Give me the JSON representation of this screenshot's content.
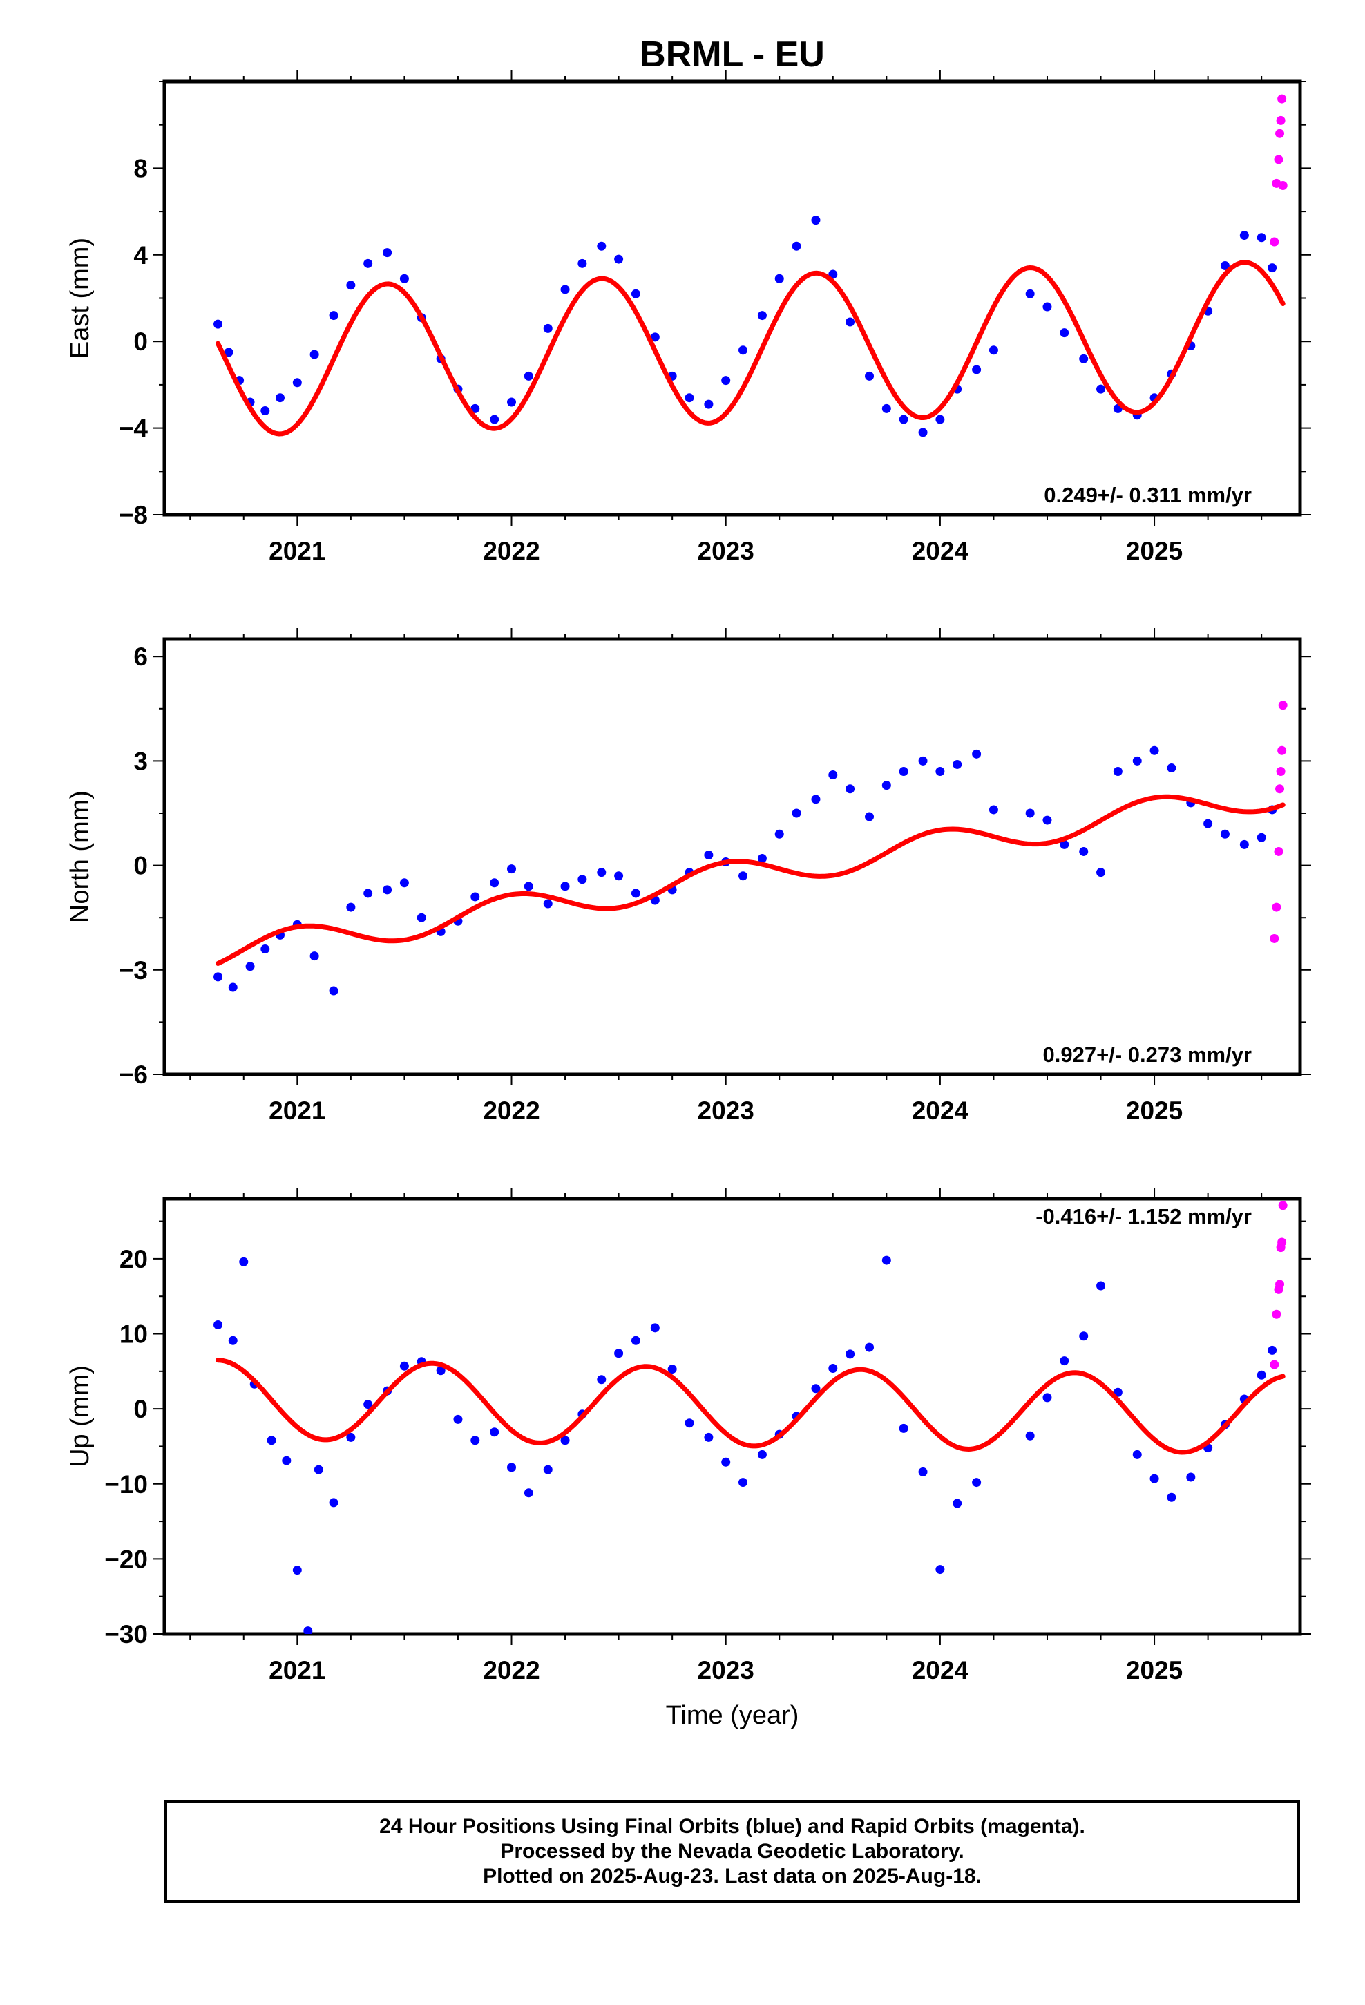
{
  "title": "BRML - EU",
  "colors": {
    "final": "#0000ff",
    "rapid": "#ff00ff",
    "model": "#ff0000",
    "frame": "#000000"
  },
  "footer": {
    "line1": "24 Hour Positions Using Final Orbits (blue) and Rapid Orbits (magenta).",
    "line2": "Processed by the Nevada Geodetic Laboratory.",
    "line3": "Plotted on 2025-Aug-23. Last data on 2025-Aug-18."
  },
  "chart_data": [
    {
      "type": "scatter",
      "ylabel": "East (mm)",
      "xlabel": "",
      "xlim": [
        2020.38,
        2025.68
      ],
      "ylim": [
        -8,
        12
      ],
      "xticks": [
        2021,
        2022,
        2023,
        2024,
        2025
      ],
      "yticks": [
        -8,
        -4,
        0,
        4,
        8
      ],
      "annotation": "0.249+/- 0.311 mm/yr",
      "annotation_pos": "bottom-right",
      "rate_mm_yr": 0.249,
      "rate_sigma": 0.311,
      "model": {
        "intercept": -0.35,
        "rate": 0.249,
        "amp": 3.4,
        "peak_phase": 0.42,
        "x0": 2023.0
      },
      "series": [
        {
          "name": "Final",
          "x": [
            2020.63,
            2020.68,
            2020.73,
            2020.78,
            2020.85,
            2020.92,
            2021.0,
            2021.08,
            2021.17,
            2021.25,
            2021.33,
            2021.42,
            2021.5,
            2021.58,
            2021.67,
            2021.75,
            2021.83,
            2021.92,
            2022.0,
            2022.08,
            2022.17,
            2022.25,
            2022.33,
            2022.42,
            2022.5,
            2022.58,
            2022.67,
            2022.75,
            2022.83,
            2022.92,
            2023.0,
            2023.08,
            2023.17,
            2023.25,
            2023.33,
            2023.42,
            2023.5,
            2023.58,
            2023.67,
            2023.75,
            2023.83,
            2023.92,
            2024.0,
            2024.08,
            2024.17,
            2024.25,
            2024.42,
            2024.5,
            2024.58,
            2024.67,
            2024.75,
            2024.83,
            2024.92,
            2025.0,
            2025.08,
            2025.17,
            2025.25,
            2025.33,
            2025.42,
            2025.5,
            2025.55
          ],
          "y": [
            0.8,
            -0.5,
            -1.8,
            -2.8,
            -3.2,
            -2.6,
            -1.9,
            -0.6,
            1.2,
            2.6,
            3.6,
            4.1,
            2.9,
            1.1,
            -0.8,
            -2.2,
            -3.1,
            -3.6,
            -2.8,
            -1.6,
            0.6,
            2.4,
            3.6,
            4.4,
            3.8,
            2.2,
            0.2,
            -1.6,
            -2.6,
            -2.9,
            -1.8,
            -0.4,
            1.2,
            2.9,
            4.4,
            5.6,
            3.1,
            0.9,
            -1.6,
            -3.1,
            -3.6,
            -4.2,
            -3.6,
            -2.2,
            -1.3,
            -0.4,
            2.2,
            1.6,
            0.4,
            -0.8,
            -2.2,
            -3.1,
            -3.4,
            -2.6,
            -1.5,
            -0.2,
            1.4,
            3.5,
            4.9,
            4.8,
            3.4
          ]
        },
        {
          "name": "Rapid",
          "x": [
            2025.56,
            2025.57,
            2025.58,
            2025.585,
            2025.59,
            2025.595,
            2025.6
          ],
          "y": [
            4.6,
            7.3,
            8.4,
            9.6,
            10.2,
            11.2,
            7.2
          ]
        }
      ]
    },
    {
      "type": "scatter",
      "ylabel": "North (mm)",
      "xlabel": "",
      "xlim": [
        2020.38,
        2025.68
      ],
      "ylim": [
        -6,
        6.5
      ],
      "xticks": [
        2021,
        2022,
        2023,
        2024,
        2025
      ],
      "yticks": [
        -6,
        -3,
        0,
        3,
        6
      ],
      "annotation": "0.927+/- 0.273 mm/yr",
      "annotation_pos": "bottom-right",
      "rate_mm_yr": 0.927,
      "rate_sigma": 0.273,
      "model": {
        "intercept": -0.33,
        "rate": 0.927,
        "amp": 0.42,
        "peak_phase": 0.0,
        "x0": 2023.0
      },
      "series": [
        {
          "name": "Final",
          "x": [
            2020.63,
            2020.7,
            2020.78,
            2020.85,
            2020.92,
            2021.0,
            2021.08,
            2021.17,
            2021.25,
            2021.33,
            2021.42,
            2021.5,
            2021.58,
            2021.67,
            2021.75,
            2021.83,
            2021.92,
            2022.0,
            2022.08,
            2022.17,
            2022.25,
            2022.33,
            2022.42,
            2022.5,
            2022.58,
            2022.67,
            2022.75,
            2022.83,
            2022.92,
            2023.0,
            2023.08,
            2023.17,
            2023.25,
            2023.33,
            2023.42,
            2023.5,
            2023.58,
            2023.67,
            2023.75,
            2023.83,
            2023.92,
            2024.0,
            2024.08,
            2024.17,
            2024.25,
            2024.42,
            2024.5,
            2024.58,
            2024.67,
            2024.75,
            2024.83,
            2024.92,
            2025.0,
            2025.08,
            2025.17,
            2025.25,
            2025.33,
            2025.42,
            2025.5,
            2025.55
          ],
          "y": [
            -3.2,
            -3.5,
            -2.9,
            -2.4,
            -2.0,
            -1.7,
            -2.6,
            -3.6,
            -1.2,
            -0.8,
            -0.7,
            -0.5,
            -1.5,
            -1.9,
            -1.6,
            -0.9,
            -0.5,
            -0.1,
            -0.6,
            -1.1,
            -0.6,
            -0.4,
            -0.2,
            -0.3,
            -0.8,
            -1.0,
            -0.7,
            -0.2,
            0.3,
            0.1,
            -0.3,
            0.2,
            0.9,
            1.5,
            1.9,
            2.6,
            2.2,
            1.4,
            2.3,
            2.7,
            3.0,
            2.7,
            2.9,
            3.2,
            1.6,
            1.5,
            1.3,
            0.6,
            0.4,
            -0.2,
            2.7,
            3.0,
            3.3,
            2.8,
            1.8,
            1.2,
            0.9,
            0.6,
            0.8,
            1.6
          ]
        },
        {
          "name": "Rapid",
          "x": [
            2025.56,
            2025.57,
            2025.58,
            2025.585,
            2025.59,
            2025.595,
            2025.6
          ],
          "y": [
            -2.1,
            -1.2,
            0.4,
            2.2,
            2.7,
            3.3,
            4.6
          ]
        }
      ]
    },
    {
      "type": "scatter",
      "ylabel": "Up (mm)",
      "xlabel": "Time (year)",
      "xlim": [
        2020.38,
        2025.68
      ],
      "ylim": [
        -30,
        28
      ],
      "xticks": [
        2021,
        2022,
        2023,
        2024,
        2025
      ],
      "yticks": [
        -30,
        -20,
        -10,
        0,
        10,
        20
      ],
      "annotation": "-0.416+/- 1.152 mm/yr",
      "annotation_pos": "top-right",
      "rate_mm_yr": -0.416,
      "rate_sigma": 1.152,
      "model": {
        "intercept": 0.3,
        "rate": -0.416,
        "amp": 5.2,
        "peak_phase": 0.63,
        "x0": 2023.0
      },
      "series": [
        {
          "name": "Final",
          "x": [
            2020.63,
            2020.7,
            2020.75,
            2020.8,
            2020.88,
            2020.95,
            2021.0,
            2021.05,
            2021.1,
            2021.17,
            2021.25,
            2021.33,
            2021.42,
            2021.5,
            2021.58,
            2021.67,
            2021.75,
            2021.83,
            2021.92,
            2022.0,
            2022.08,
            2022.17,
            2022.25,
            2022.33,
            2022.42,
            2022.5,
            2022.58,
            2022.67,
            2022.75,
            2022.83,
            2022.92,
            2023.0,
            2023.08,
            2023.17,
            2023.25,
            2023.33,
            2023.42,
            2023.5,
            2023.58,
            2023.67,
            2023.75,
            2023.83,
            2023.92,
            2024.0,
            2024.08,
            2024.17,
            2024.42,
            2024.5,
            2024.58,
            2024.67,
            2024.75,
            2024.83,
            2024.92,
            2025.0,
            2025.08,
            2025.17,
            2025.25,
            2025.33,
            2025.42,
            2025.5,
            2025.55
          ],
          "y": [
            11.2,
            9.1,
            19.6,
            3.3,
            -4.2,
            -6.9,
            -21.5,
            -29.6,
            -8.1,
            -12.5,
            -3.8,
            0.6,
            2.4,
            5.7,
            6.3,
            5.1,
            -1.4,
            -4.2,
            -3.1,
            -7.8,
            -11.2,
            -8.1,
            -4.2,
            -0.7,
            3.9,
            7.4,
            9.1,
            10.8,
            5.3,
            -1.9,
            -3.8,
            -7.1,
            -9.8,
            -6.1,
            -3.4,
            -1.0,
            2.7,
            5.4,
            7.3,
            8.2,
            19.8,
            -2.6,
            -8.4,
            -21.4,
            -12.6,
            -9.8,
            -3.6,
            1.5,
            6.4,
            9.7,
            16.4,
            2.2,
            -6.1,
            -9.3,
            -11.8,
            -9.1,
            -5.2,
            -2.1,
            1.3,
            4.5,
            7.8
          ]
        },
        {
          "name": "Rapid",
          "x": [
            2025.56,
            2025.57,
            2025.58,
            2025.585,
            2025.59,
            2025.595,
            2025.6
          ],
          "y": [
            5.9,
            12.6,
            15.9,
            16.6,
            21.5,
            22.2,
            27.1
          ]
        }
      ]
    }
  ]
}
